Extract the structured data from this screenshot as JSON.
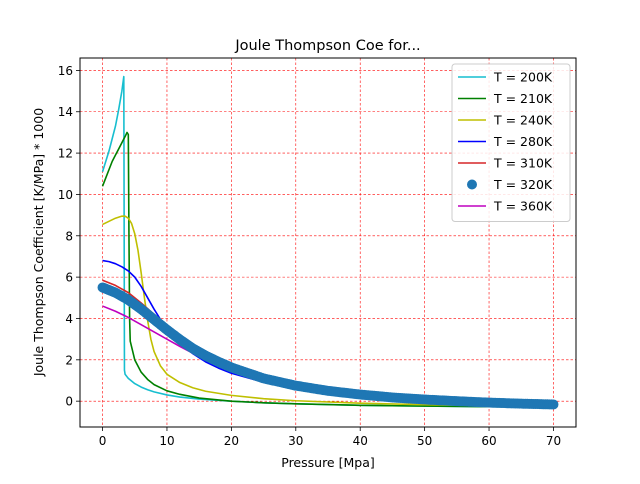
{
  "chart_data": {
    "type": "line",
    "title": "Joule Thompson Coe for...",
    "xlabel": "Pressure [Mpa]",
    "ylabel": "Joule Thompson Coefficient [K/MPa] * 1000",
    "xlim": [
      -3.5,
      73.5
    ],
    "ylim": [
      -1.25,
      16.6
    ],
    "xticks": [
      0,
      10,
      20,
      30,
      40,
      50,
      60,
      70
    ],
    "yticks": [
      0,
      2,
      4,
      6,
      8,
      10,
      12,
      14,
      16
    ],
    "grid": true,
    "grid_color": "#ff0000",
    "legend_position": "upper right",
    "series": [
      {
        "name": "T = 200K",
        "color": "#17becf",
        "marker": "none",
        "x": [
          0,
          0.5,
          1,
          1.5,
          2,
          2.5,
          3,
          3.3,
          3.35,
          3.4,
          3.5,
          4,
          5,
          6,
          7,
          8,
          10,
          12,
          15,
          20,
          25,
          30,
          40,
          50,
          60,
          70
        ],
        "y": [
          11.1,
          11.6,
          12.1,
          12.7,
          13.3,
          14.1,
          15.0,
          15.7,
          9.0,
          1.5,
          1.3,
          1.1,
          0.85,
          0.68,
          0.55,
          0.45,
          0.3,
          0.2,
          0.1,
          0.0,
          -0.08,
          -0.13,
          -0.2,
          -0.24,
          -0.27,
          -0.29
        ]
      },
      {
        "name": "T = 210K",
        "color": "#008000",
        "marker": "none",
        "x": [
          0,
          0.5,
          1,
          1.5,
          2,
          2.5,
          3,
          3.5,
          3.8,
          4.0,
          4.1,
          4.2,
          4.3,
          5,
          6,
          7,
          8,
          10,
          12,
          15,
          20,
          25,
          30,
          40,
          50,
          60,
          70
        ],
        "y": [
          10.4,
          10.8,
          11.2,
          11.6,
          11.9,
          12.2,
          12.5,
          12.8,
          13.0,
          12.9,
          8.0,
          4.0,
          2.9,
          2.0,
          1.4,
          1.05,
          0.8,
          0.5,
          0.33,
          0.15,
          0.0,
          -0.08,
          -0.13,
          -0.2,
          -0.24,
          -0.27,
          -0.29
        ]
      },
      {
        "name": "T = 240K",
        "color": "#bfbf00",
        "marker": "none",
        "x": [
          0,
          1,
          2,
          3,
          3.5,
          4,
          4.5,
          5,
          5.5,
          6,
          6.5,
          7,
          7.5,
          8,
          9,
          10,
          12,
          14,
          16,
          20,
          25,
          30,
          40,
          50,
          60,
          70
        ],
        "y": [
          8.55,
          8.7,
          8.85,
          8.95,
          8.95,
          8.85,
          8.6,
          8.1,
          7.3,
          6.2,
          5.0,
          3.9,
          3.0,
          2.4,
          1.7,
          1.3,
          0.9,
          0.65,
          0.48,
          0.28,
          0.12,
          0.02,
          -0.1,
          -0.17,
          -0.22,
          -0.26
        ]
      },
      {
        "name": "T = 280K",
        "color": "#0000ff",
        "marker": "none",
        "x": [
          0,
          1,
          2,
          3,
          4,
          5,
          6,
          7,
          8,
          9,
          10,
          12,
          14,
          16,
          18,
          20,
          25,
          30,
          35,
          40,
          50,
          60,
          70
        ],
        "y": [
          6.8,
          6.75,
          6.65,
          6.5,
          6.3,
          6.0,
          5.55,
          5.0,
          4.45,
          3.95,
          3.5,
          2.8,
          2.3,
          1.9,
          1.6,
          1.35,
          0.92,
          0.62,
          0.42,
          0.27,
          0.05,
          -0.08,
          -0.17
        ]
      },
      {
        "name": "T = 310K",
        "color": "#d62728",
        "marker": "none",
        "x": [
          0,
          2,
          4,
          6,
          8,
          10,
          12,
          14,
          16,
          18,
          20,
          25,
          30,
          35,
          40,
          50,
          60,
          70
        ],
        "y": [
          5.85,
          5.6,
          5.25,
          4.75,
          4.2,
          3.65,
          3.15,
          2.7,
          2.3,
          1.98,
          1.7,
          1.15,
          0.78,
          0.52,
          0.35,
          0.1,
          -0.05,
          -0.15
        ]
      },
      {
        "name": "T = 320K",
        "color": "#1f77b4",
        "marker": "o",
        "x": [
          0,
          2,
          4,
          6,
          8,
          10,
          12,
          14,
          16,
          18,
          20,
          25,
          30,
          35,
          40,
          45,
          50,
          55,
          60,
          65,
          70
        ],
        "y": [
          5.5,
          5.25,
          4.9,
          4.45,
          3.95,
          3.45,
          2.98,
          2.55,
          2.2,
          1.9,
          1.63,
          1.1,
          0.75,
          0.5,
          0.32,
          0.18,
          0.08,
          0.0,
          -0.07,
          -0.12,
          -0.16
        ]
      },
      {
        "name": "T = 360K",
        "color": "#bf00bf",
        "marker": "none",
        "x": [
          0,
          2,
          4,
          6,
          8,
          10,
          12,
          14,
          16,
          18,
          20,
          25,
          30,
          35,
          40,
          50,
          60,
          70
        ],
        "y": [
          4.6,
          4.35,
          4.05,
          3.7,
          3.35,
          3.0,
          2.65,
          2.32,
          2.02,
          1.76,
          1.52,
          1.05,
          0.72,
          0.48,
          0.32,
          0.08,
          -0.04,
          -0.12
        ]
      }
    ]
  }
}
